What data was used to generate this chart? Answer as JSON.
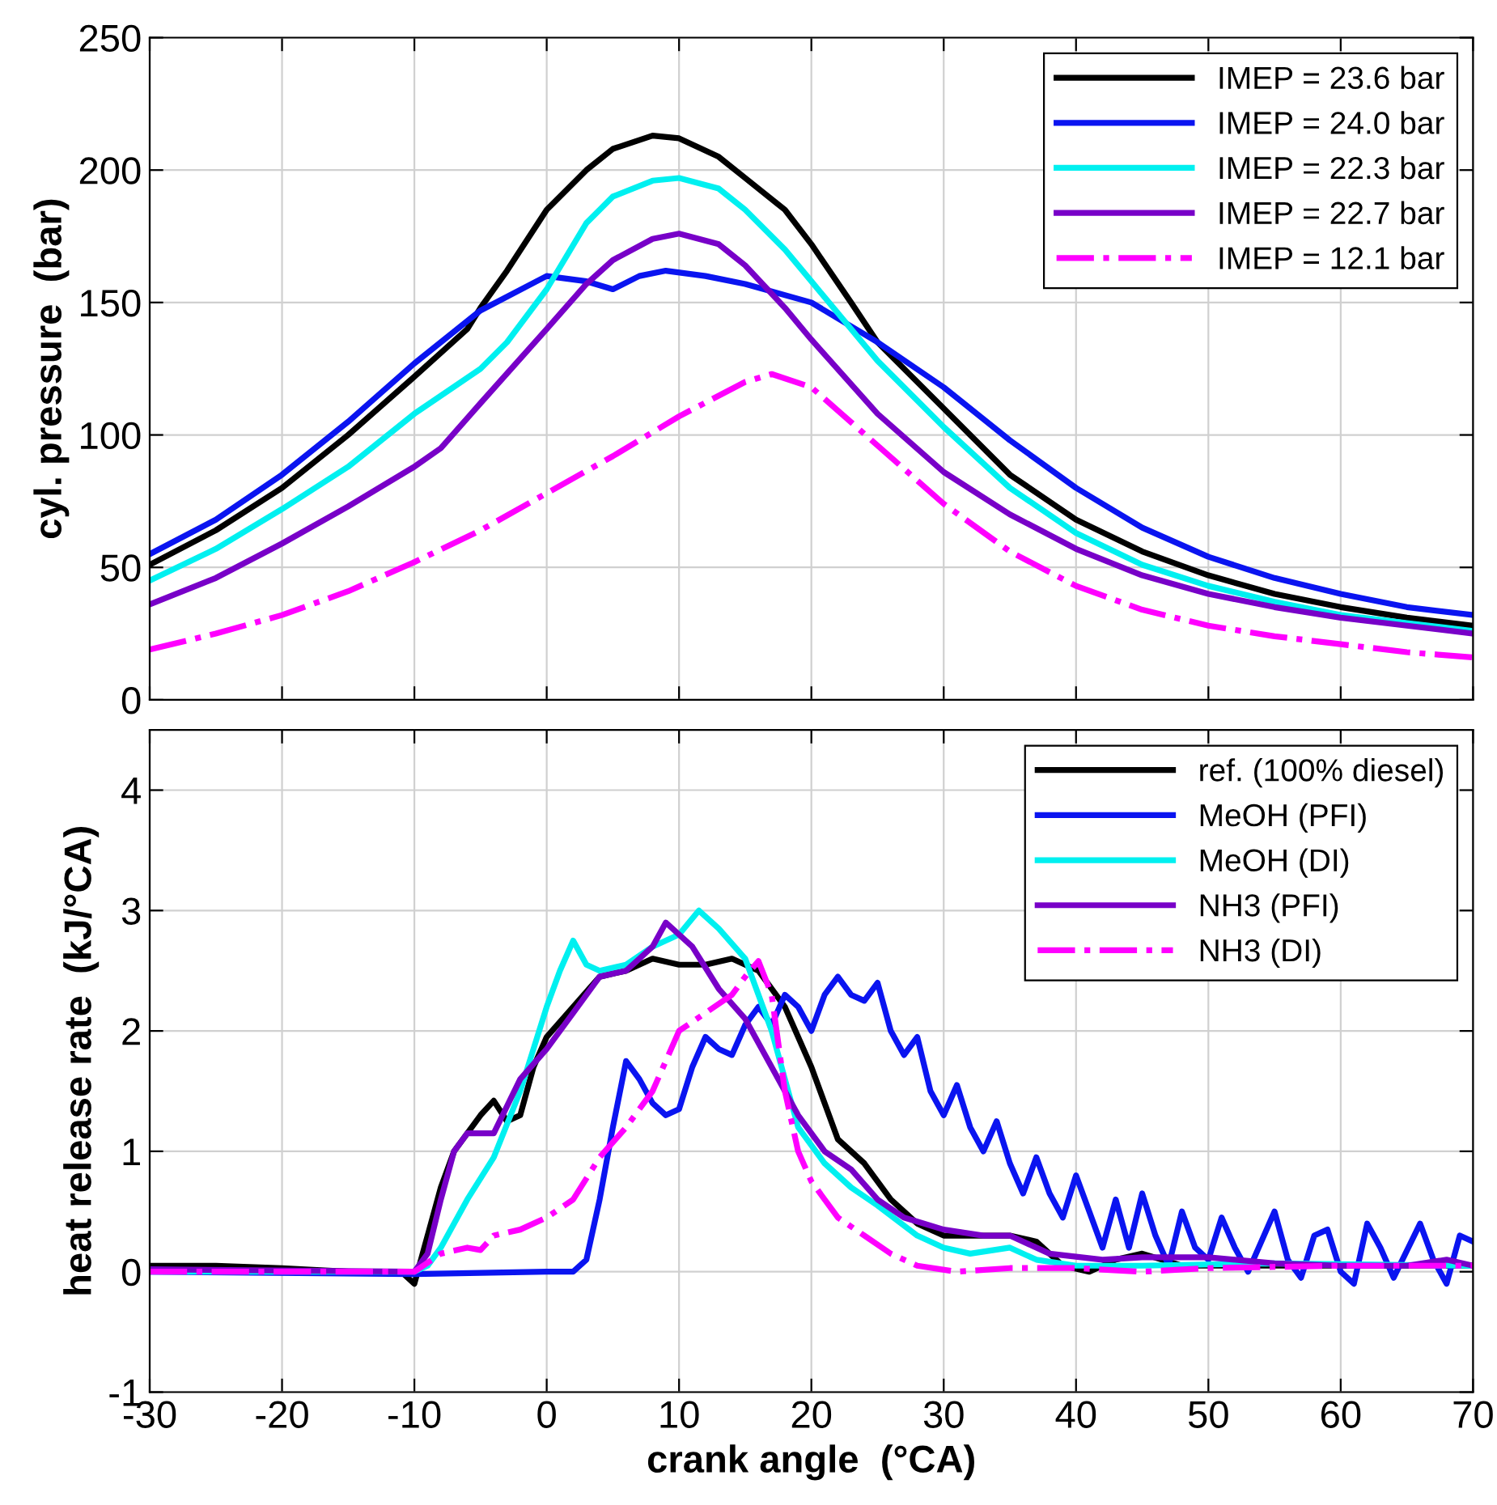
{
  "chart_data": [
    {
      "type": "line",
      "ylabel": "cyl. pressure  (bar)",
      "xlim": [
        -30,
        70
      ],
      "xticks": [
        -30,
        -20,
        -10,
        0,
        10,
        20,
        30,
        40,
        50,
        60,
        70
      ],
      "ylim": [
        0,
        250
      ],
      "yticks": [
        0,
        50,
        100,
        150,
        200,
        250
      ],
      "tick_labels": "y",
      "grid": true,
      "legend": "top right",
      "series": [
        {
          "name": "IMEP = 23.6 bar",
          "color": "#000000",
          "line_style": "solid",
          "x": [
            -30,
            -25,
            -20,
            -15,
            -10,
            -6,
            -5,
            -3,
            0,
            3,
            5,
            8,
            10,
            13,
            15,
            18,
            20,
            23,
            25,
            30,
            35,
            40,
            45,
            50,
            55,
            60,
            65,
            70
          ],
          "values": [
            51,
            64,
            80,
            100,
            122,
            140,
            148,
            162,
            185,
            200,
            208,
            213,
            212,
            205,
            197,
            185,
            172,
            150,
            135,
            110,
            85,
            68,
            56,
            47,
            40,
            35,
            31,
            28
          ]
        },
        {
          "name": "IMEP = 24.0 bar",
          "color": "#0a14f0",
          "line_style": "solid",
          "x": [
            -30,
            -25,
            -20,
            -15,
            -10,
            -5,
            0,
            3,
            5,
            7,
            9,
            12,
            15,
            20,
            25,
            30,
            35,
            40,
            45,
            50,
            55,
            60,
            65,
            70
          ],
          "values": [
            55,
            68,
            85,
            105,
            127,
            147,
            160,
            158,
            155,
            160,
            162,
            160,
            157,
            150,
            135,
            118,
            98,
            80,
            65,
            54,
            46,
            40,
            35,
            32
          ]
        },
        {
          "name": "IMEP = 22.3 bar",
          "color": "#00f0f0",
          "line_style": "solid",
          "x": [
            -30,
            -25,
            -20,
            -15,
            -10,
            -5,
            -3,
            0,
            3,
            5,
            8,
            10,
            13,
            15,
            18,
            20,
            25,
            30,
            35,
            40,
            45,
            50,
            55,
            60,
            65,
            70
          ],
          "values": [
            45,
            57,
            72,
            88,
            108,
            125,
            135,
            155,
            180,
            190,
            196,
            197,
            193,
            185,
            170,
            158,
            128,
            103,
            80,
            63,
            51,
            43,
            37,
            32,
            29,
            26
          ]
        },
        {
          "name": "IMEP = 22.7 bar",
          "color": "#7800c8",
          "line_style": "solid",
          "x": [
            -30,
            -25,
            -20,
            -15,
            -10,
            -8,
            -5,
            0,
            3,
            5,
            8,
            10,
            13,
            15,
            18,
            20,
            25,
            30,
            35,
            40,
            45,
            50,
            55,
            60,
            65,
            70
          ],
          "values": [
            36,
            46,
            59,
            73,
            88,
            95,
            112,
            140,
            157,
            166,
            174,
            176,
            172,
            164,
            148,
            136,
            108,
            86,
            70,
            57,
            47,
            40,
            35,
            31,
            28,
            25
          ]
        },
        {
          "name": "IMEP = 12.1 bar",
          "color": "#ff00ff",
          "line_style": "dashdot",
          "x": [
            -30,
            -25,
            -20,
            -15,
            -10,
            -5,
            0,
            5,
            10,
            15,
            17,
            20,
            25,
            30,
            35,
            40,
            45,
            50,
            55,
            60,
            65,
            70
          ],
          "values": [
            19,
            25,
            32,
            41,
            52,
            64,
            78,
            92,
            107,
            120,
            123,
            118,
            96,
            74,
            56,
            43,
            34,
            28,
            24,
            21,
            18,
            16
          ]
        }
      ]
    },
    {
      "type": "line",
      "xlabel": "crank angle  (°CA)",
      "ylabel": "heat release rate  (kJ/°CA)",
      "xlim": [
        -30,
        70
      ],
      "xticks": [
        -30,
        -20,
        -10,
        0,
        10,
        20,
        30,
        40,
        50,
        60,
        70
      ],
      "ylim": [
        -1,
        4.5
      ],
      "yticks": [
        -1,
        0,
        1,
        2,
        3,
        4
      ],
      "grid": true,
      "legend": "top right",
      "series": [
        {
          "name": "ref. (100% diesel)",
          "color": "#000000",
          "line_style": "solid",
          "x": [
            -30,
            -25,
            -20,
            -15,
            -11,
            -10,
            -9,
            -8,
            -7,
            -5,
            -4,
            -3,
            -2,
            -1,
            0,
            2,
            4,
            6,
            8,
            10,
            12,
            14,
            16,
            18,
            20,
            22,
            24,
            26,
            28,
            30,
            33,
            35,
            37,
            39,
            41,
            43,
            45,
            48,
            70
          ],
          "values": [
            0.05,
            0.05,
            0.03,
            0.0,
            0.0,
            -0.1,
            0.3,
            0.7,
            1.0,
            1.3,
            1.42,
            1.25,
            1.3,
            1.7,
            1.95,
            2.2,
            2.45,
            2.5,
            2.6,
            2.55,
            2.55,
            2.6,
            2.5,
            2.2,
            1.7,
            1.1,
            0.9,
            0.6,
            0.4,
            0.3,
            0.3,
            0.3,
            0.25,
            0.05,
            0.0,
            0.1,
            0.15,
            0.05,
            0.05
          ]
        },
        {
          "name": "MeOH (PFI)",
          "color": "#0a14f0",
          "line_style": "solid",
          "x": [
            -30,
            -10,
            0,
            2,
            3,
            4,
            5,
            6,
            7,
            8,
            9,
            10,
            11,
            12,
            13,
            14,
            15,
            16,
            17,
            18,
            19,
            20,
            21,
            22,
            23,
            24,
            25,
            26,
            27,
            28,
            29,
            30,
            31,
            32,
            33,
            34,
            35,
            36,
            37,
            38,
            39,
            40,
            41,
            42,
            43,
            44,
            45,
            46,
            47,
            48,
            49,
            50,
            51,
            52,
            53,
            55,
            56,
            57,
            58,
            59,
            60,
            61,
            62,
            63,
            64,
            66,
            67,
            68,
            69,
            70
          ],
          "values": [
            0,
            -0.02,
            0,
            0,
            0.1,
            0.6,
            1.2,
            1.75,
            1.6,
            1.4,
            1.3,
            1.35,
            1.7,
            1.95,
            1.85,
            1.8,
            2.05,
            2.2,
            2.05,
            2.3,
            2.2,
            2.0,
            2.3,
            2.45,
            2.3,
            2.25,
            2.4,
            2.0,
            1.8,
            1.95,
            1.5,
            1.3,
            1.55,
            1.2,
            1.0,
            1.25,
            0.9,
            0.65,
            0.95,
            0.65,
            0.45,
            0.8,
            0.5,
            0.2,
            0.6,
            0.2,
            0.65,
            0.3,
            0.05,
            0.5,
            0.2,
            0.1,
            0.45,
            0.2,
            0.0,
            0.5,
            0.1,
            -0.05,
            0.3,
            0.35,
            0,
            -0.1,
            0.4,
            0.2,
            -0.05,
            0.4,
            0.1,
            -0.1,
            0.3,
            0.25
          ]
        },
        {
          "name": "MeOH (DI)",
          "color": "#00f0f0",
          "line_style": "solid",
          "x": [
            -30,
            -10,
            -9,
            -8,
            -6,
            -4,
            -2,
            0,
            1,
            2,
            3,
            4,
            6,
            8,
            10,
            11.5,
            13,
            15,
            17,
            19,
            21,
            23,
            25,
            28,
            30,
            32,
            35,
            37,
            40,
            45,
            55,
            70
          ],
          "values": [
            0,
            0,
            0.05,
            0.2,
            0.6,
            0.95,
            1.5,
            2.2,
            2.5,
            2.75,
            2.55,
            2.5,
            2.55,
            2.7,
            2.8,
            3.0,
            2.85,
            2.6,
            2.0,
            1.2,
            0.9,
            0.7,
            0.55,
            0.3,
            0.2,
            0.15,
            0.2,
            0.1,
            0.05,
            0.05,
            0.07,
            0.05
          ]
        },
        {
          "name": "NH3 (PFI)",
          "color": "#7800c8",
          "line_style": "solid",
          "x": [
            -30,
            -10,
            -9,
            -8,
            -7,
            -6,
            -4,
            -2,
            0,
            2,
            4,
            6,
            7,
            8,
            9,
            11,
            13,
            15,
            17,
            19,
            21,
            23,
            25,
            27,
            30,
            33,
            35,
            38,
            42,
            45,
            50,
            55,
            60,
            65,
            68,
            70
          ],
          "values": [
            0.02,
            0,
            0.15,
            0.6,
            1.0,
            1.15,
            1.15,
            1.6,
            1.85,
            2.15,
            2.45,
            2.5,
            2.6,
            2.7,
            2.9,
            2.7,
            2.35,
            2.1,
            1.7,
            1.3,
            1.0,
            0.85,
            0.6,
            0.45,
            0.35,
            0.3,
            0.3,
            0.15,
            0.1,
            0.12,
            0.12,
            0.07,
            0.05,
            0.05,
            0.1,
            0.05
          ]
        },
        {
          "name": "NH3 (DI)",
          "color": "#ff00ff",
          "line_style": "dashdot",
          "x": [
            -30,
            -10,
            -8,
            -6,
            -5,
            -4,
            -2,
            0,
            2,
            4,
            6,
            8,
            10,
            12,
            14,
            15,
            16,
            17,
            18,
            19,
            20,
            22,
            24,
            26,
            28,
            31,
            35,
            40,
            45,
            50,
            60,
            70
          ],
          "values": [
            0,
            0,
            0.15,
            0.2,
            0.18,
            0.3,
            0.35,
            0.45,
            0.6,
            0.95,
            1.2,
            1.5,
            2.0,
            2.15,
            2.3,
            2.45,
            2.58,
            2.3,
            1.5,
            1.0,
            0.75,
            0.45,
            0.3,
            0.15,
            0.05,
            0.0,
            0.03,
            0.03,
            0.0,
            0.03,
            0.05,
            0.05
          ]
        }
      ]
    }
  ]
}
